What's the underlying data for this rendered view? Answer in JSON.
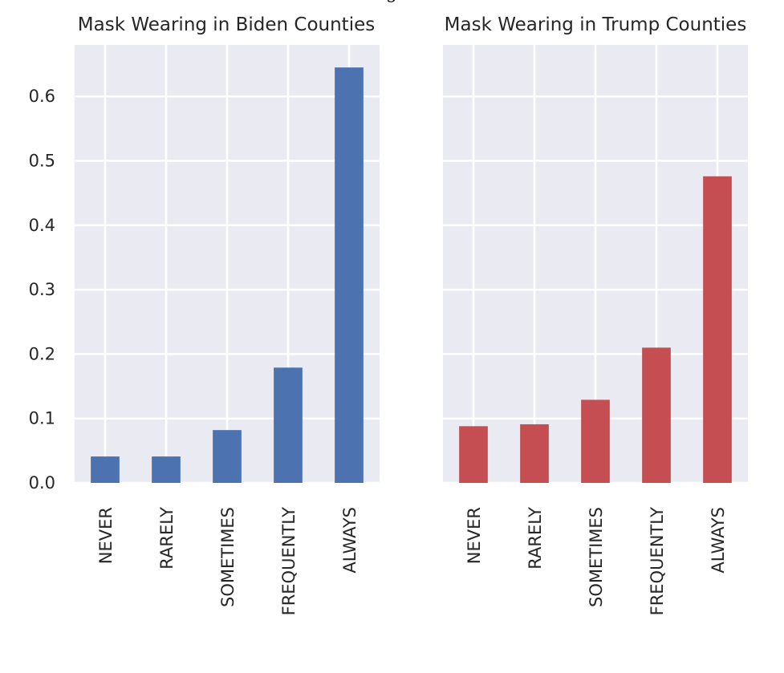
{
  "figure_title": "g",
  "chart_data": [
    {
      "type": "bar",
      "title": "Mask Wearing in Biden Counties",
      "xlabel": "",
      "ylabel": "",
      "categories": [
        "NEVER",
        "RARELY",
        "SOMETIMES",
        "FREQUENTLY",
        "ALWAYS"
      ],
      "values": [
        0.041,
        0.041,
        0.082,
        0.179,
        0.645
      ],
      "ylim": [
        0,
        0.68
      ],
      "yticks": [
        0.0,
        0.1,
        0.2,
        0.3,
        0.4,
        0.5,
        0.6
      ],
      "ytick_labels": [
        "0.0",
        "0.1",
        "0.2",
        "0.3",
        "0.4",
        "0.5",
        "0.6"
      ],
      "color": "#4c72b0",
      "grid": true,
      "background": "#eaeaf2"
    },
    {
      "type": "bar",
      "title": "Mask Wearing in Trump Counties",
      "xlabel": "",
      "ylabel": "",
      "categories": [
        "NEVER",
        "RARELY",
        "SOMETIMES",
        "FREQUENTLY",
        "ALWAYS"
      ],
      "values": [
        0.088,
        0.091,
        0.129,
        0.21,
        0.476
      ],
      "ylim": [
        0,
        0.68
      ],
      "yticks": [
        0.0,
        0.1,
        0.2,
        0.3,
        0.4,
        0.5,
        0.6
      ],
      "ytick_labels": [],
      "color": "#c44e52",
      "grid": true,
      "background": "#eaeaf2"
    }
  ]
}
